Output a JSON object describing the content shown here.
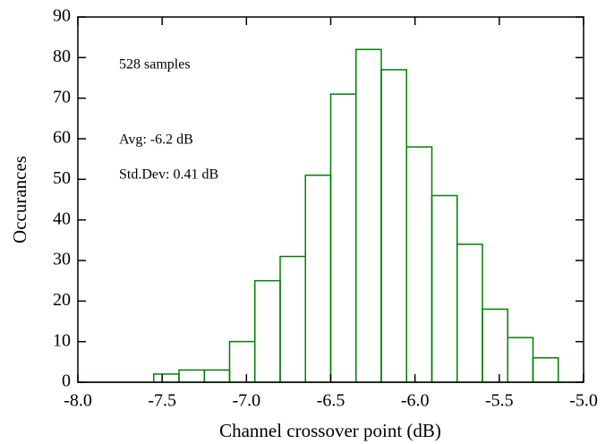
{
  "chart_data": {
    "type": "histogram",
    "xlabel": "Channel crossover point (dB)",
    "ylabel": "Occurances",
    "annotations": [
      "528 samples",
      "Avg: -6.2 dB",
      "Std.Dev: 0.41 dB"
    ],
    "bins": [
      -8.0,
      -7.85,
      -7.7,
      -7.55,
      -7.4,
      -7.25,
      -7.1,
      -6.95,
      -6.8,
      -6.65,
      -6.5,
      -6.35,
      -6.2,
      -6.05,
      -5.9,
      -5.75,
      -5.6,
      -5.45,
      -5.3,
      -5.15,
      -5.0
    ],
    "values": [
      0,
      0,
      0,
      2,
      3,
      3,
      10,
      25,
      31,
      51,
      71,
      82,
      77,
      58,
      46,
      34,
      18,
      11,
      6,
      0
    ],
    "color": "#008000",
    "xlim": [
      -8.0,
      -5.0
    ],
    "xticks": [
      {
        "value": -8.0,
        "label": "-8.0"
      },
      -7.5,
      {
        "value": -7.0,
        "label": "-7.0"
      },
      -6.5,
      {
        "value": -6.0,
        "label": "-6.0"
      },
      -5.5,
      {
        "value": -5.0,
        "label": "-5.0"
      }
    ],
    "ylim": [
      0,
      90
    ],
    "yticks": [
      0,
      10,
      20,
      30,
      40,
      50,
      60,
      70,
      80,
      90
    ]
  }
}
